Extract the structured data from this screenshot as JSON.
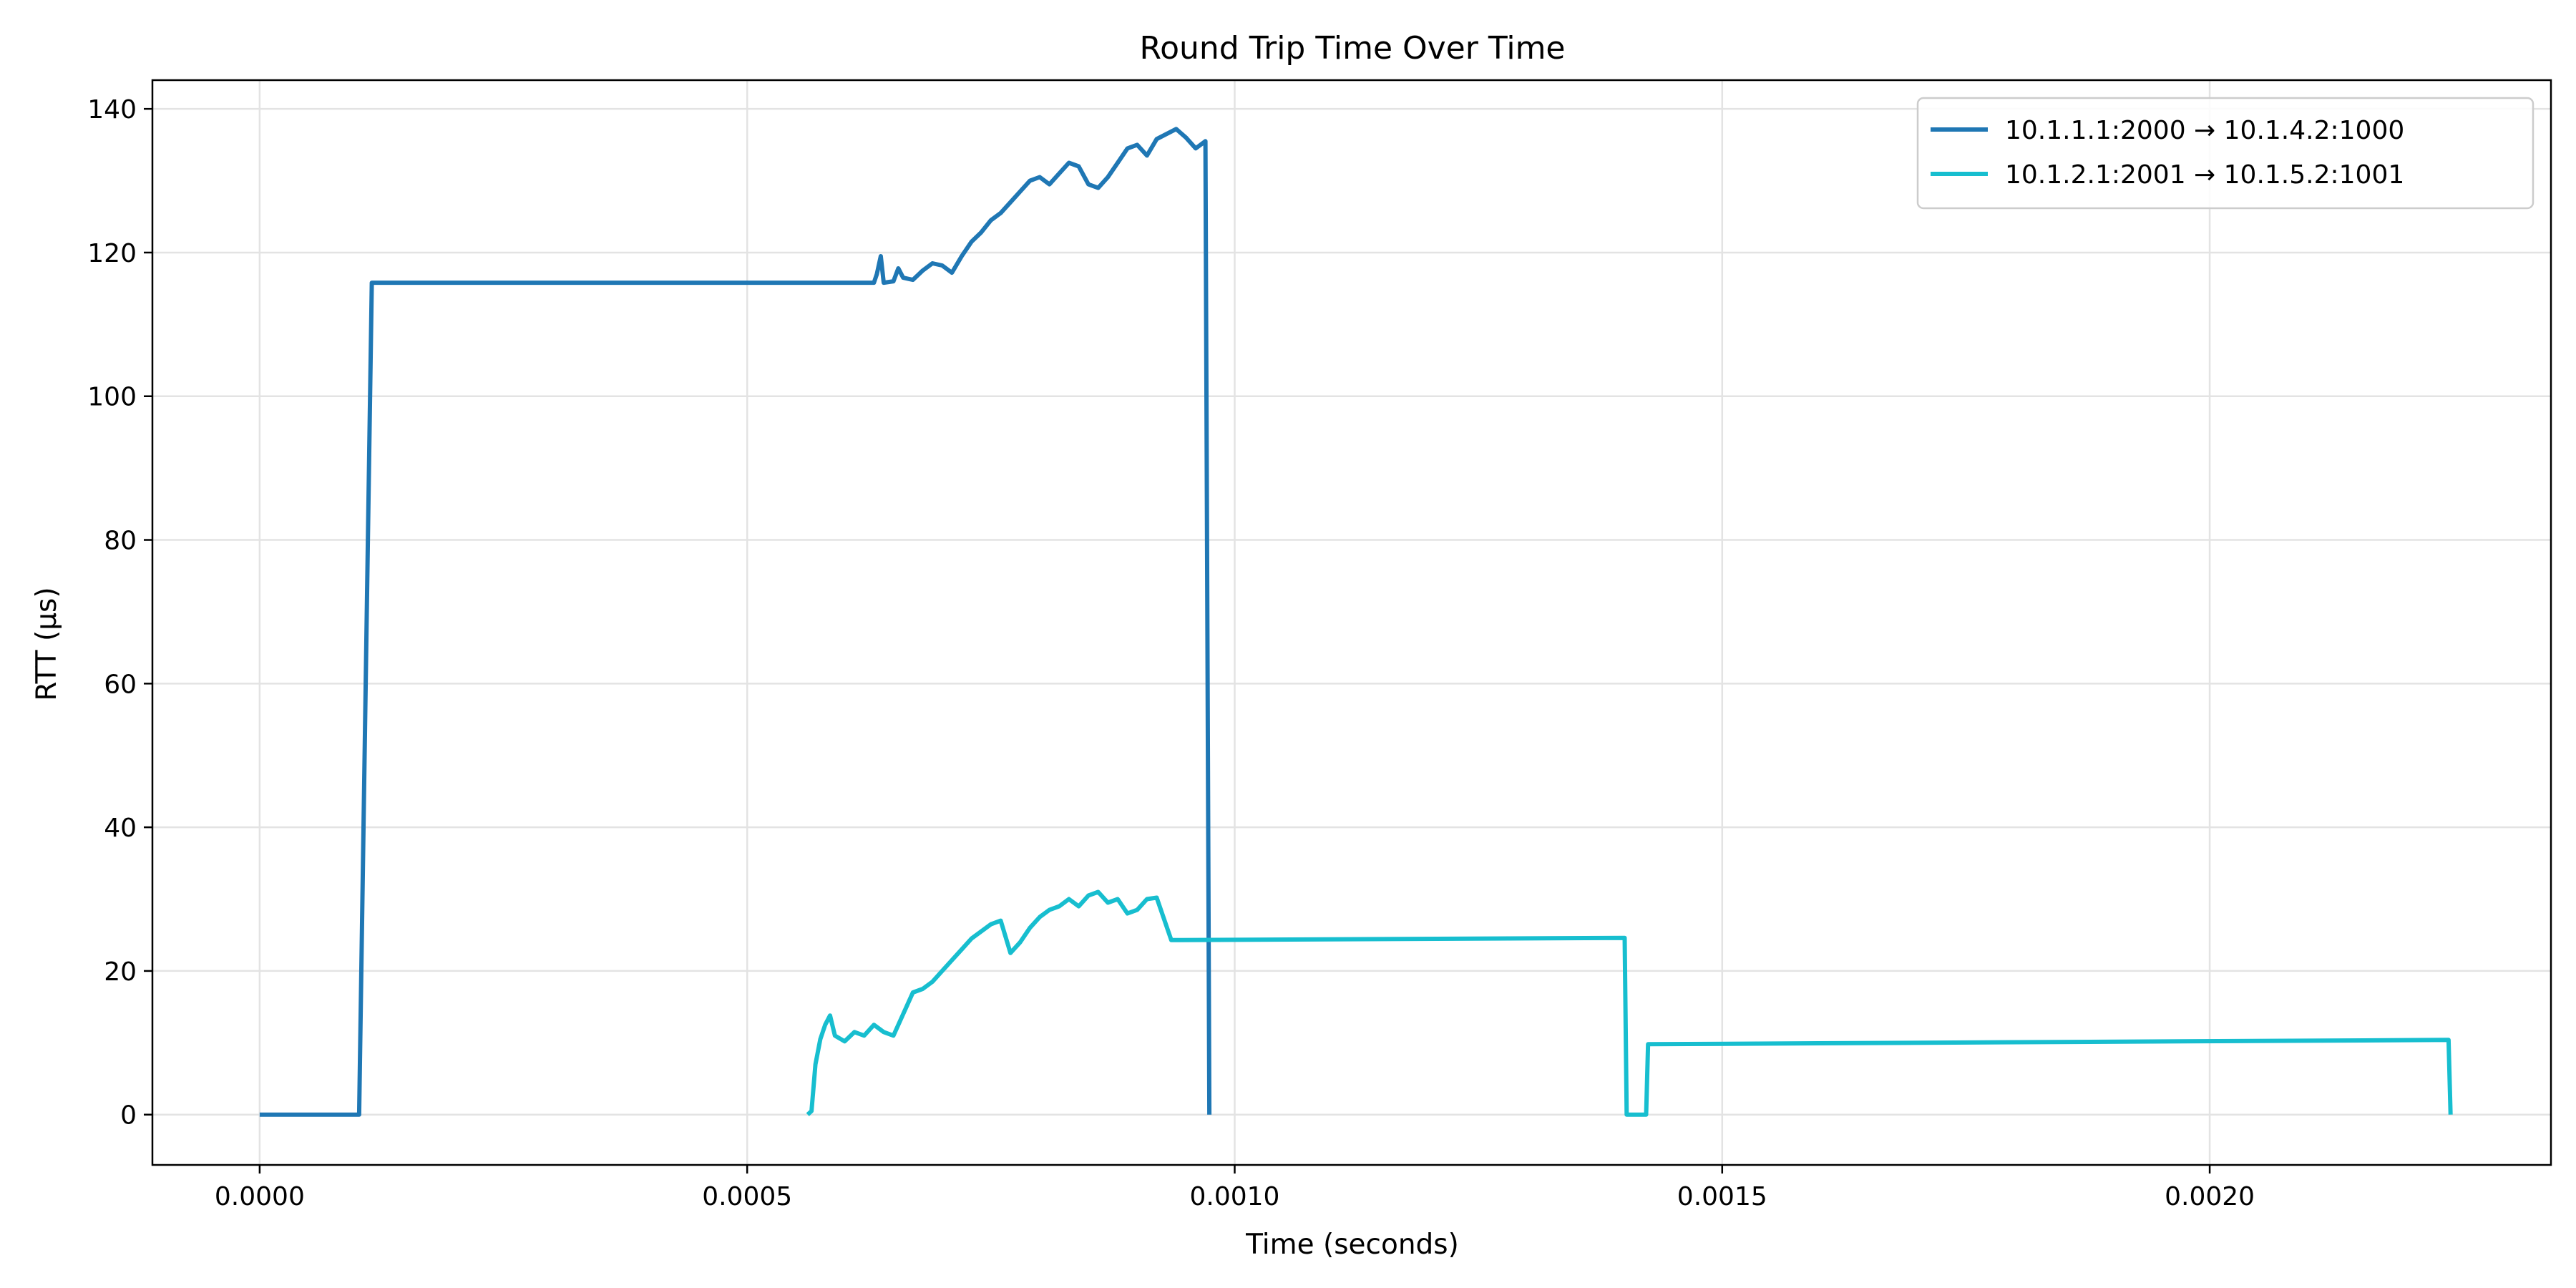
{
  "chart_data": {
    "type": "line",
    "title": "Round Trip Time Over Time",
    "xlabel": "Time (seconds)",
    "ylabel": "RTT (µs)",
    "xlim": [
      -0.00011,
      0.00235
    ],
    "ylim": [
      -7,
      144
    ],
    "xticks": [
      {
        "value": 0.0,
        "label": "0.0000"
      },
      {
        "value": 0.0005,
        "label": "0.0005"
      },
      {
        "value": 0.001,
        "label": "0.0010"
      },
      {
        "value": 0.0015,
        "label": "0.0015"
      },
      {
        "value": 0.002,
        "label": "0.0020"
      }
    ],
    "yticks": [
      {
        "value": 0,
        "label": "0"
      },
      {
        "value": 20,
        "label": "20"
      },
      {
        "value": 40,
        "label": "40"
      },
      {
        "value": 60,
        "label": "60"
      },
      {
        "value": 80,
        "label": "80"
      },
      {
        "value": 100,
        "label": "100"
      },
      {
        "value": 120,
        "label": "120"
      },
      {
        "value": 140,
        "label": "140"
      }
    ],
    "grid": true,
    "legend_position": "top-right",
    "series": [
      {
        "name": "10.1.1.1:2000 → 10.1.4.2:1000",
        "color": "#1f77b4",
        "points": [
          [
            0.0,
            0
          ],
          [
            0.000102,
            0
          ],
          [
            0.000115,
            115.8
          ],
          [
            0.00063,
            115.8
          ],
          [
            0.000633,
            117
          ],
          [
            0.000637,
            119.5
          ],
          [
            0.00064,
            115.8
          ],
          [
            0.00065,
            116
          ],
          [
            0.000655,
            117.8
          ],
          [
            0.00066,
            116.5
          ],
          [
            0.00067,
            116.2
          ],
          [
            0.00068,
            117.5
          ],
          [
            0.00069,
            118.5
          ],
          [
            0.0007,
            118.2
          ],
          [
            0.00071,
            117.2
          ],
          [
            0.00072,
            119.5
          ],
          [
            0.00073,
            121.5
          ],
          [
            0.00074,
            122.8
          ],
          [
            0.00075,
            124.5
          ],
          [
            0.00076,
            125.5
          ],
          [
            0.00077,
            127
          ],
          [
            0.00078,
            128.5
          ],
          [
            0.00079,
            130
          ],
          [
            0.0008,
            130.5
          ],
          [
            0.00081,
            129.5
          ],
          [
            0.00082,
            131
          ],
          [
            0.00083,
            132.5
          ],
          [
            0.00084,
            132
          ],
          [
            0.00085,
            129.5
          ],
          [
            0.00086,
            129
          ],
          [
            0.00087,
            130.5
          ],
          [
            0.00088,
            132.5
          ],
          [
            0.00089,
            134.5
          ],
          [
            0.0009,
            135
          ],
          [
            0.00091,
            133.5
          ],
          [
            0.00092,
            135.8
          ],
          [
            0.00093,
            136.5
          ],
          [
            0.00094,
            137.2
          ],
          [
            0.00095,
            136
          ],
          [
            0.00096,
            134.5
          ],
          [
            0.00097,
            135.5
          ],
          [
            0.000974,
            0
          ]
        ]
      },
      {
        "name": "10.1.2.1:2001 → 10.1.5.2:1001",
        "color": "#17becf",
        "points": [
          [
            0.000562,
            0
          ],
          [
            0.000566,
            0.5
          ],
          [
            0.00057,
            7
          ],
          [
            0.000575,
            10.5
          ],
          [
            0.00058,
            12.5
          ],
          [
            0.000585,
            13.8
          ],
          [
            0.00059,
            11
          ],
          [
            0.0006,
            10.2
          ],
          [
            0.00061,
            11.5
          ],
          [
            0.00062,
            11
          ],
          [
            0.00063,
            12.5
          ],
          [
            0.00064,
            11.5
          ],
          [
            0.00065,
            11
          ],
          [
            0.00066,
            14
          ],
          [
            0.00067,
            17
          ],
          [
            0.00068,
            17.5
          ],
          [
            0.00069,
            18.5
          ],
          [
            0.0007,
            20
          ],
          [
            0.00071,
            21.5
          ],
          [
            0.00072,
            23
          ],
          [
            0.00073,
            24.5
          ],
          [
            0.00074,
            25.5
          ],
          [
            0.00075,
            26.5
          ],
          [
            0.00076,
            27
          ],
          [
            0.00077,
            22.5
          ],
          [
            0.00078,
            24
          ],
          [
            0.00079,
            26
          ],
          [
            0.0008,
            27.5
          ],
          [
            0.00081,
            28.5
          ],
          [
            0.00082,
            29
          ],
          [
            0.00083,
            30
          ],
          [
            0.00084,
            29
          ],
          [
            0.00085,
            30.5
          ],
          [
            0.00086,
            31
          ],
          [
            0.00087,
            29.5
          ],
          [
            0.00088,
            30
          ],
          [
            0.00089,
            28
          ],
          [
            0.0009,
            28.5
          ],
          [
            0.00091,
            30
          ],
          [
            0.00092,
            30.2
          ],
          [
            0.000935,
            24.3
          ],
          [
            0.0014,
            24.6
          ],
          [
            0.001402,
            0
          ],
          [
            0.001422,
            0
          ],
          [
            0.001424,
            9.8
          ],
          [
            0.002245,
            10.4
          ],
          [
            0.002247,
            0
          ]
        ]
      }
    ]
  }
}
